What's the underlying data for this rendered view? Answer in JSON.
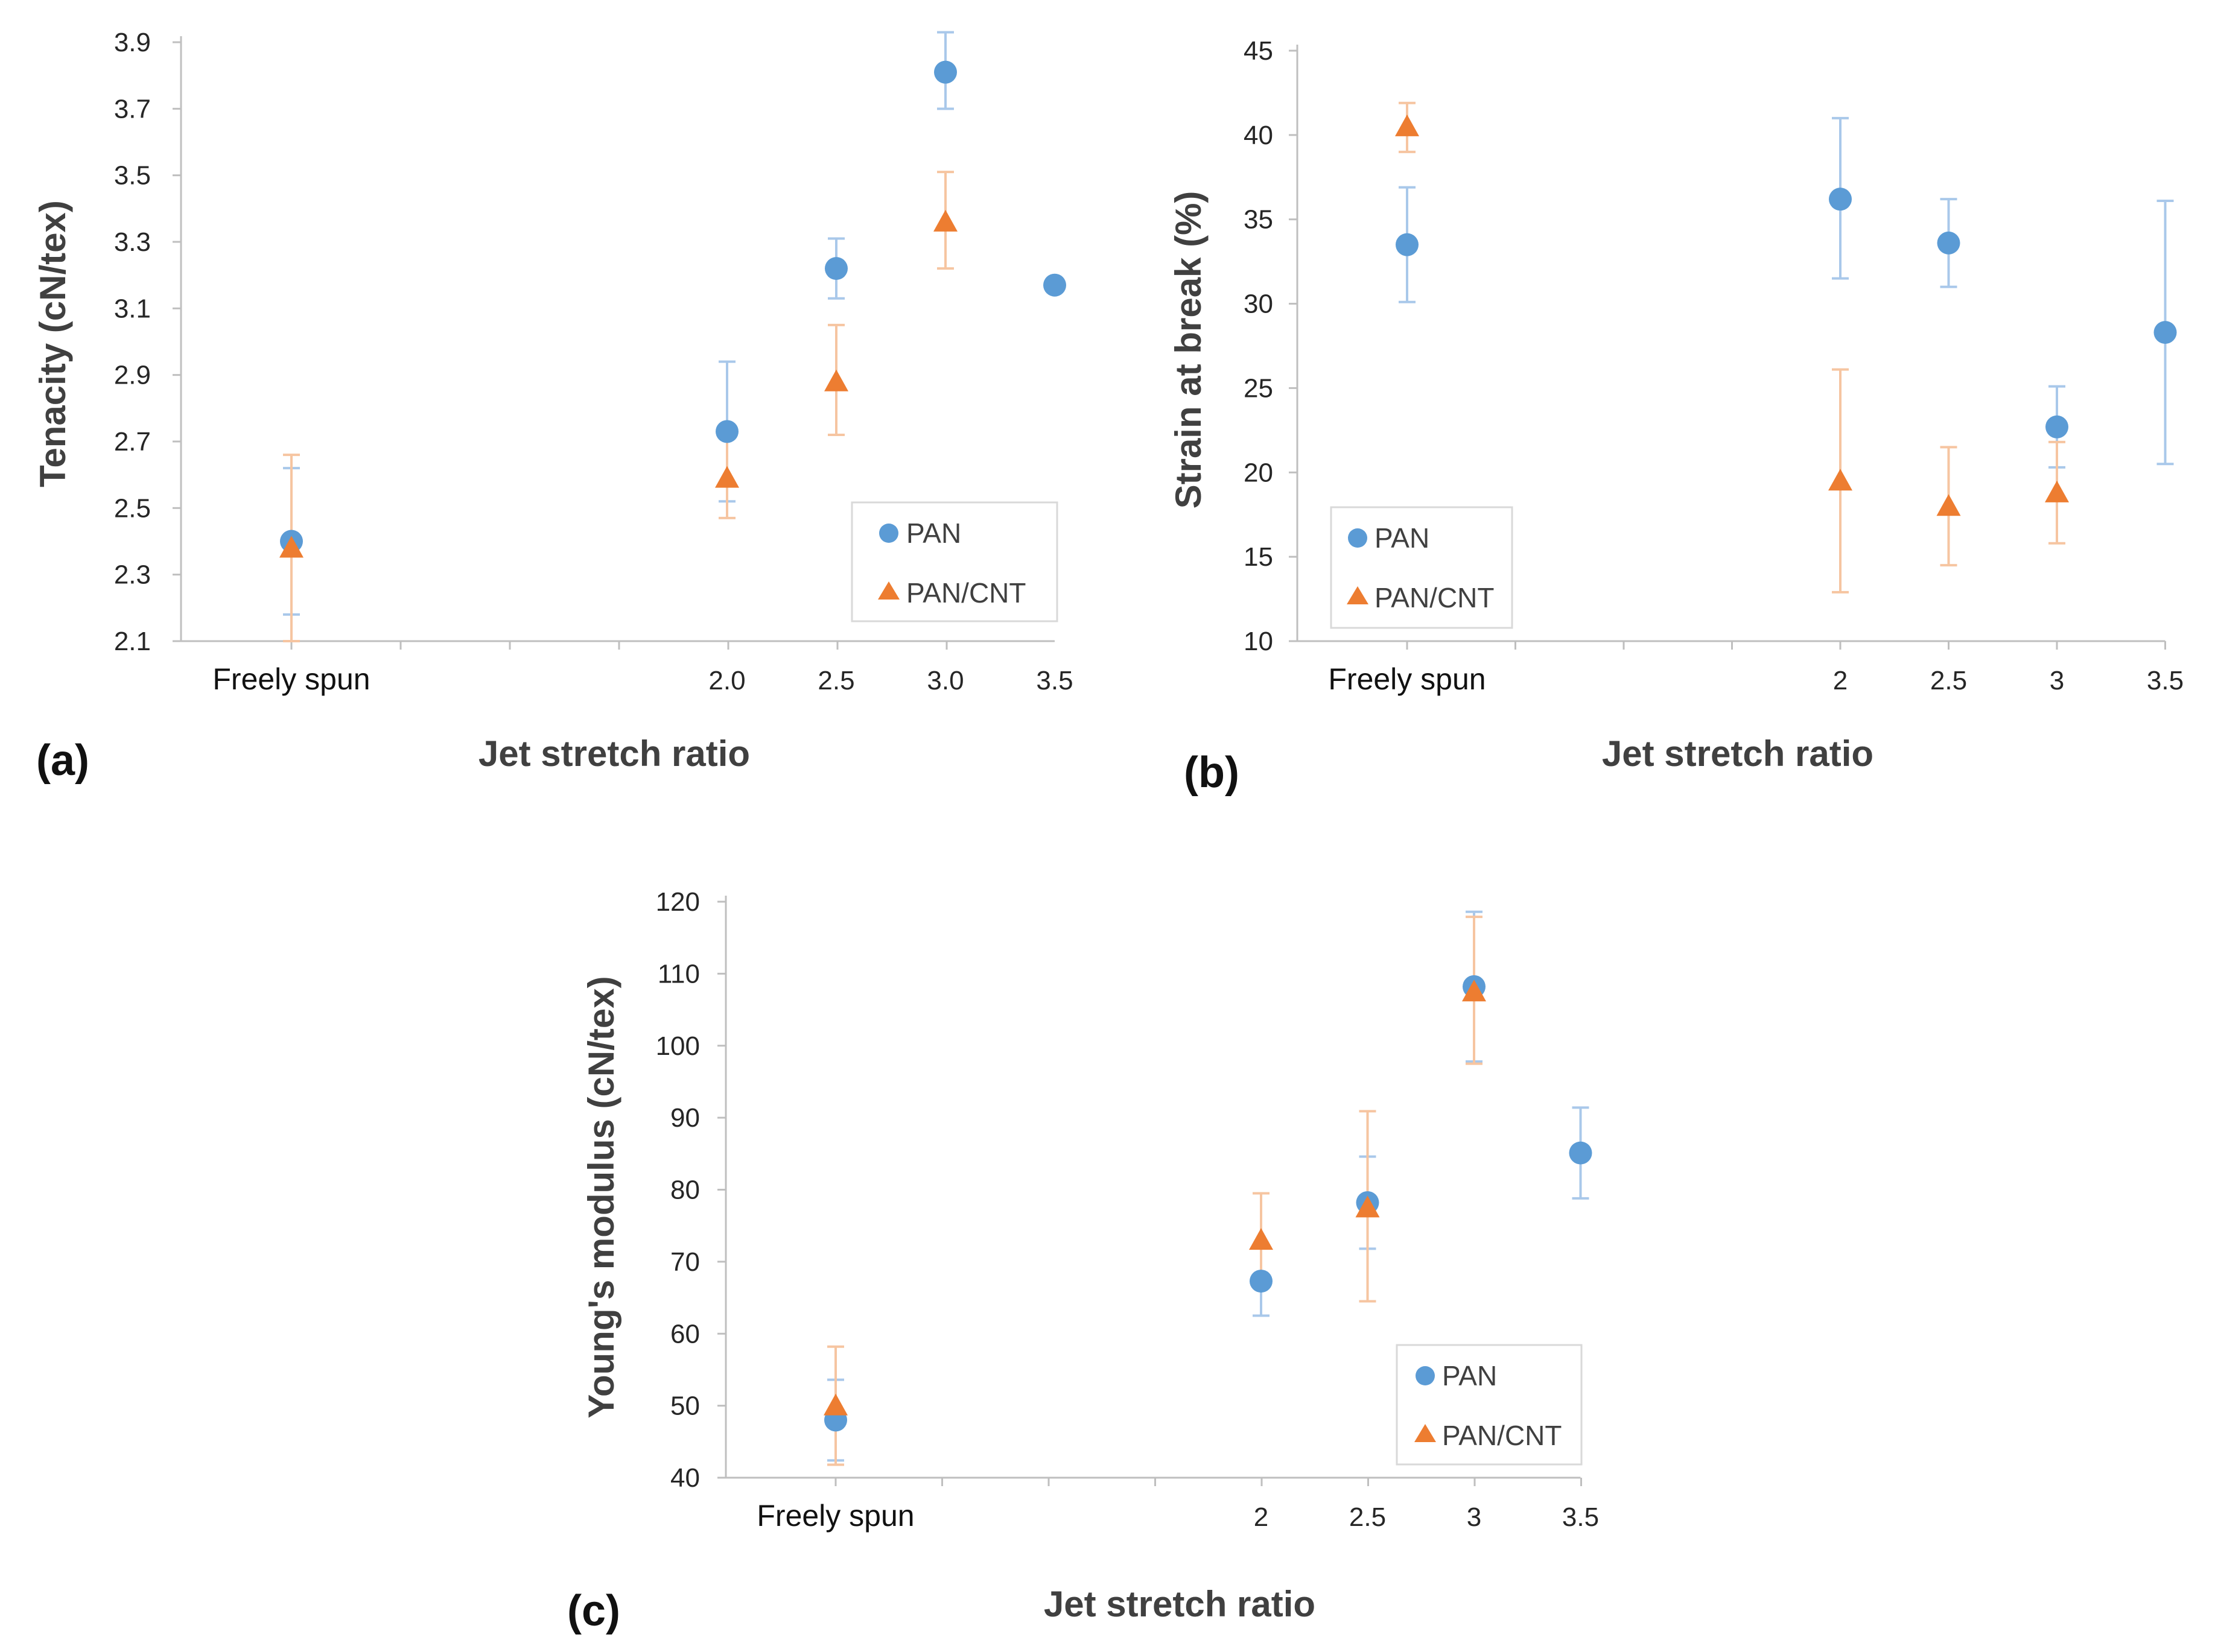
{
  "colors": {
    "pan": "#5B9BD5",
    "pan_err": "#A9C8EA",
    "cnt": "#ED7D31",
    "cnt_err": "#F6C5A1",
    "axis": "#BFBFBF"
  },
  "legend": {
    "series1": "PAN",
    "series2": "PAN/CNT"
  },
  "chart_data": [
    {
      "panel_label": "(a)",
      "type": "scatter",
      "ylabel": "Tenacity (cN/tex)",
      "xlabel": "Jet stretch ratio",
      "xlim": [
        1.0,
        3.5
      ],
      "ylim": [
        2.1,
        3.9
      ],
      "yticks": [
        "2.1",
        "2.3",
        "2.5",
        "2.7",
        "2.9",
        "3.1",
        "3.3",
        "3.5",
        "3.7",
        "3.9"
      ],
      "xticks": [
        {
          "x": 1.0,
          "label": "Freely spun"
        },
        {
          "x": 2.0,
          "label": "2.0"
        },
        {
          "x": 2.5,
          "label": "2.5"
        },
        {
          "x": 3.0,
          "label": "3.0"
        },
        {
          "x": 3.5,
          "label": "3.5"
        }
      ],
      "legend_position": "bottom-right",
      "series": [
        {
          "name": "PAN",
          "marker": "circle",
          "x": [
            1.0,
            2.0,
            2.5,
            3.0,
            3.5
          ],
          "y": [
            2.4,
            2.73,
            3.22,
            3.81,
            3.17
          ],
          "err_low": [
            2.18,
            2.52,
            3.13,
            3.7,
            3.17
          ],
          "err_high": [
            2.62,
            2.94,
            3.31,
            3.93,
            3.17
          ]
        },
        {
          "name": "PAN/CNT",
          "marker": "triangle",
          "x": [
            1.0,
            2.0,
            2.5,
            3.0
          ],
          "y": [
            2.38,
            2.59,
            2.88,
            3.36
          ],
          "err_low": [
            2.1,
            2.47,
            2.72,
            3.22
          ],
          "err_high": [
            2.66,
            2.71,
            3.05,
            3.51
          ]
        }
      ]
    },
    {
      "panel_label": "(b)",
      "type": "scatter",
      "ylabel": "Strain at break (%)",
      "xlabel": "Jet stretch ratio",
      "xlim": [
        1.0,
        3.5
      ],
      "ylim": [
        10,
        45
      ],
      "yticks": [
        "10",
        "15",
        "20",
        "25",
        "30",
        "35",
        "40",
        "45"
      ],
      "xticks": [
        {
          "x": 1.0,
          "label": "Freely spun"
        },
        {
          "x": 2.0,
          "label": "2"
        },
        {
          "x": 2.5,
          "label": "2.5"
        },
        {
          "x": 3.0,
          "label": "3"
        },
        {
          "x": 3.5,
          "label": "3.5"
        }
      ],
      "legend_position": "bottom-left",
      "series": [
        {
          "name": "PAN",
          "marker": "circle",
          "x": [
            1.0,
            2.0,
            2.5,
            3.0,
            3.5
          ],
          "y": [
            33.5,
            36.2,
            33.6,
            22.7,
            28.3
          ],
          "err_low": [
            30.1,
            31.5,
            31.0,
            20.3,
            20.5
          ],
          "err_high": [
            36.9,
            41.0,
            36.2,
            25.1,
            36.1
          ]
        },
        {
          "name": "PAN/CNT",
          "marker": "triangle",
          "x": [
            1.0,
            2.0,
            2.5,
            3.0
          ],
          "y": [
            40.5,
            19.5,
            18.0,
            18.8
          ],
          "err_low": [
            39.0,
            12.9,
            14.5,
            15.8
          ],
          "err_high": [
            41.9,
            26.1,
            21.5,
            21.8
          ]
        }
      ]
    },
    {
      "panel_label": "(c)",
      "type": "scatter",
      "ylabel": "Young's modulus (cN/tex)",
      "xlabel": "Jet stretch ratio",
      "xlim": [
        1.0,
        3.5
      ],
      "ylim": [
        40,
        120
      ],
      "yticks": [
        "40",
        "50",
        "60",
        "70",
        "80",
        "90",
        "100",
        "110",
        "120"
      ],
      "xticks": [
        {
          "x": 1.0,
          "label": "Freely spun"
        },
        {
          "x": 2.0,
          "label": "2"
        },
        {
          "x": 2.5,
          "label": "2.5"
        },
        {
          "x": 3.0,
          "label": "3"
        },
        {
          "x": 3.5,
          "label": "3.5"
        }
      ],
      "legend_position": "bottom-right",
      "series": [
        {
          "name": "PAN",
          "marker": "circle",
          "x": [
            1.0,
            2.0,
            2.5,
            3.0,
            3.5
          ],
          "y": [
            48.0,
            67.3,
            78.2,
            108.2,
            85.1
          ],
          "err_low": [
            42.4,
            62.5,
            71.8,
            97.8,
            78.8
          ],
          "err_high": [
            53.6,
            72.1,
            84.6,
            118.6,
            91.4
          ]
        },
        {
          "name": "PAN/CNT",
          "marker": "triangle",
          "x": [
            1.0,
            2.0,
            2.5,
            3.0
          ],
          "y": [
            50.0,
            73.0,
            77.5,
            107.5
          ],
          "err_low": [
            41.8,
            66.5,
            64.5,
            97.5
          ],
          "err_high": [
            58.2,
            79.5,
            90.9,
            117.9
          ]
        }
      ]
    }
  ]
}
